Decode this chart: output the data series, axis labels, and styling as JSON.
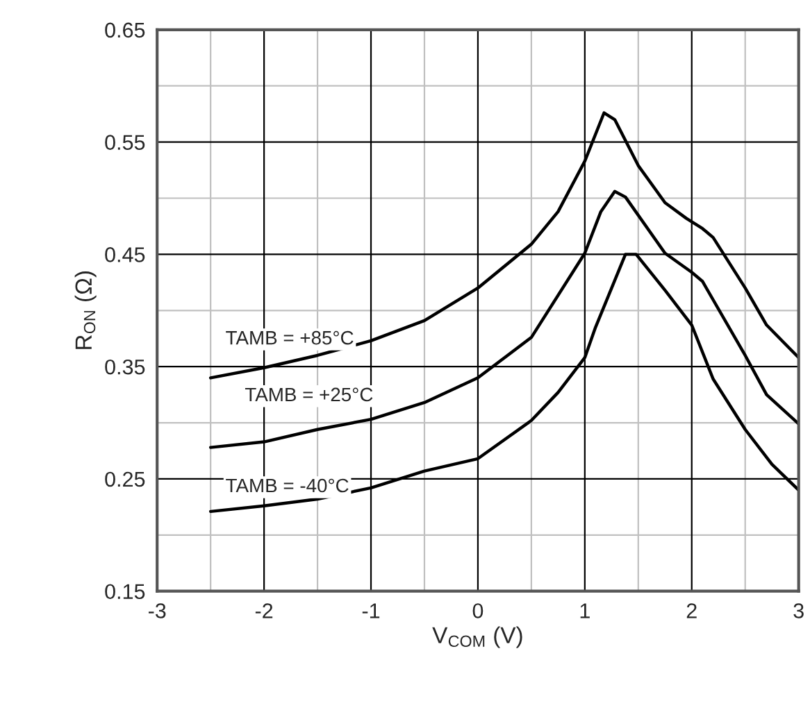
{
  "chart_data": {
    "type": "line",
    "xlabel": "V$_{COM}$ (V)",
    "ylabel": "R$_{ON}$ (Ω)",
    "xlim": [
      -3,
      3
    ],
    "xticks": [
      -3,
      -2,
      -1,
      0,
      1,
      2,
      3
    ],
    "ylim": [
      0.15,
      0.65
    ],
    "yticks": [
      0.15,
      0.25,
      0.35,
      0.45,
      0.55,
      0.65
    ],
    "grid": true,
    "legend": false,
    "marker": "none",
    "line_style": "solid",
    "series": [
      {
        "name": "TAMB = +85°C",
        "color": "#000000",
        "x": [
          -2.5,
          -2,
          -1.5,
          -1,
          -0.5,
          0,
          0.5,
          0.75,
          1.0,
          1.18,
          1.28,
          1.5,
          1.75,
          1.95,
          2.1,
          2.2,
          2.5,
          2.7,
          3.0
        ],
        "values": [
          0.34,
          0.349,
          0.36,
          0.373,
          0.391,
          0.42,
          0.459,
          0.488,
          0.533,
          0.576,
          0.57,
          0.529,
          0.496,
          0.482,
          0.473,
          0.465,
          0.42,
          0.387,
          0.358
        ]
      },
      {
        "name": "TAMB = +25°C",
        "color": "#000000",
        "x": [
          -2.5,
          -2,
          -1.5,
          -1,
          -0.5,
          0,
          0.5,
          1.0,
          1.15,
          1.28,
          1.38,
          1.75,
          2.0,
          2.1,
          2.5,
          2.7,
          3.0
        ],
        "values": [
          0.278,
          0.283,
          0.294,
          0.303,
          0.318,
          0.34,
          0.376,
          0.451,
          0.488,
          0.506,
          0.501,
          0.451,
          0.434,
          0.426,
          0.36,
          0.325,
          0.299
        ]
      },
      {
        "name": "TAMB = -40°C",
        "color": "#000000",
        "x": [
          -2.5,
          -2,
          -1.5,
          -1,
          -0.5,
          0,
          0.5,
          0.75,
          1.0,
          1.1,
          1.38,
          1.48,
          1.75,
          2.0,
          2.2,
          2.5,
          2.75,
          3.0
        ],
        "values": [
          0.221,
          0.226,
          0.232,
          0.242,
          0.257,
          0.268,
          0.302,
          0.327,
          0.358,
          0.385,
          0.45,
          0.45,
          0.418,
          0.387,
          0.339,
          0.294,
          0.263,
          0.24
        ]
      }
    ]
  }
}
